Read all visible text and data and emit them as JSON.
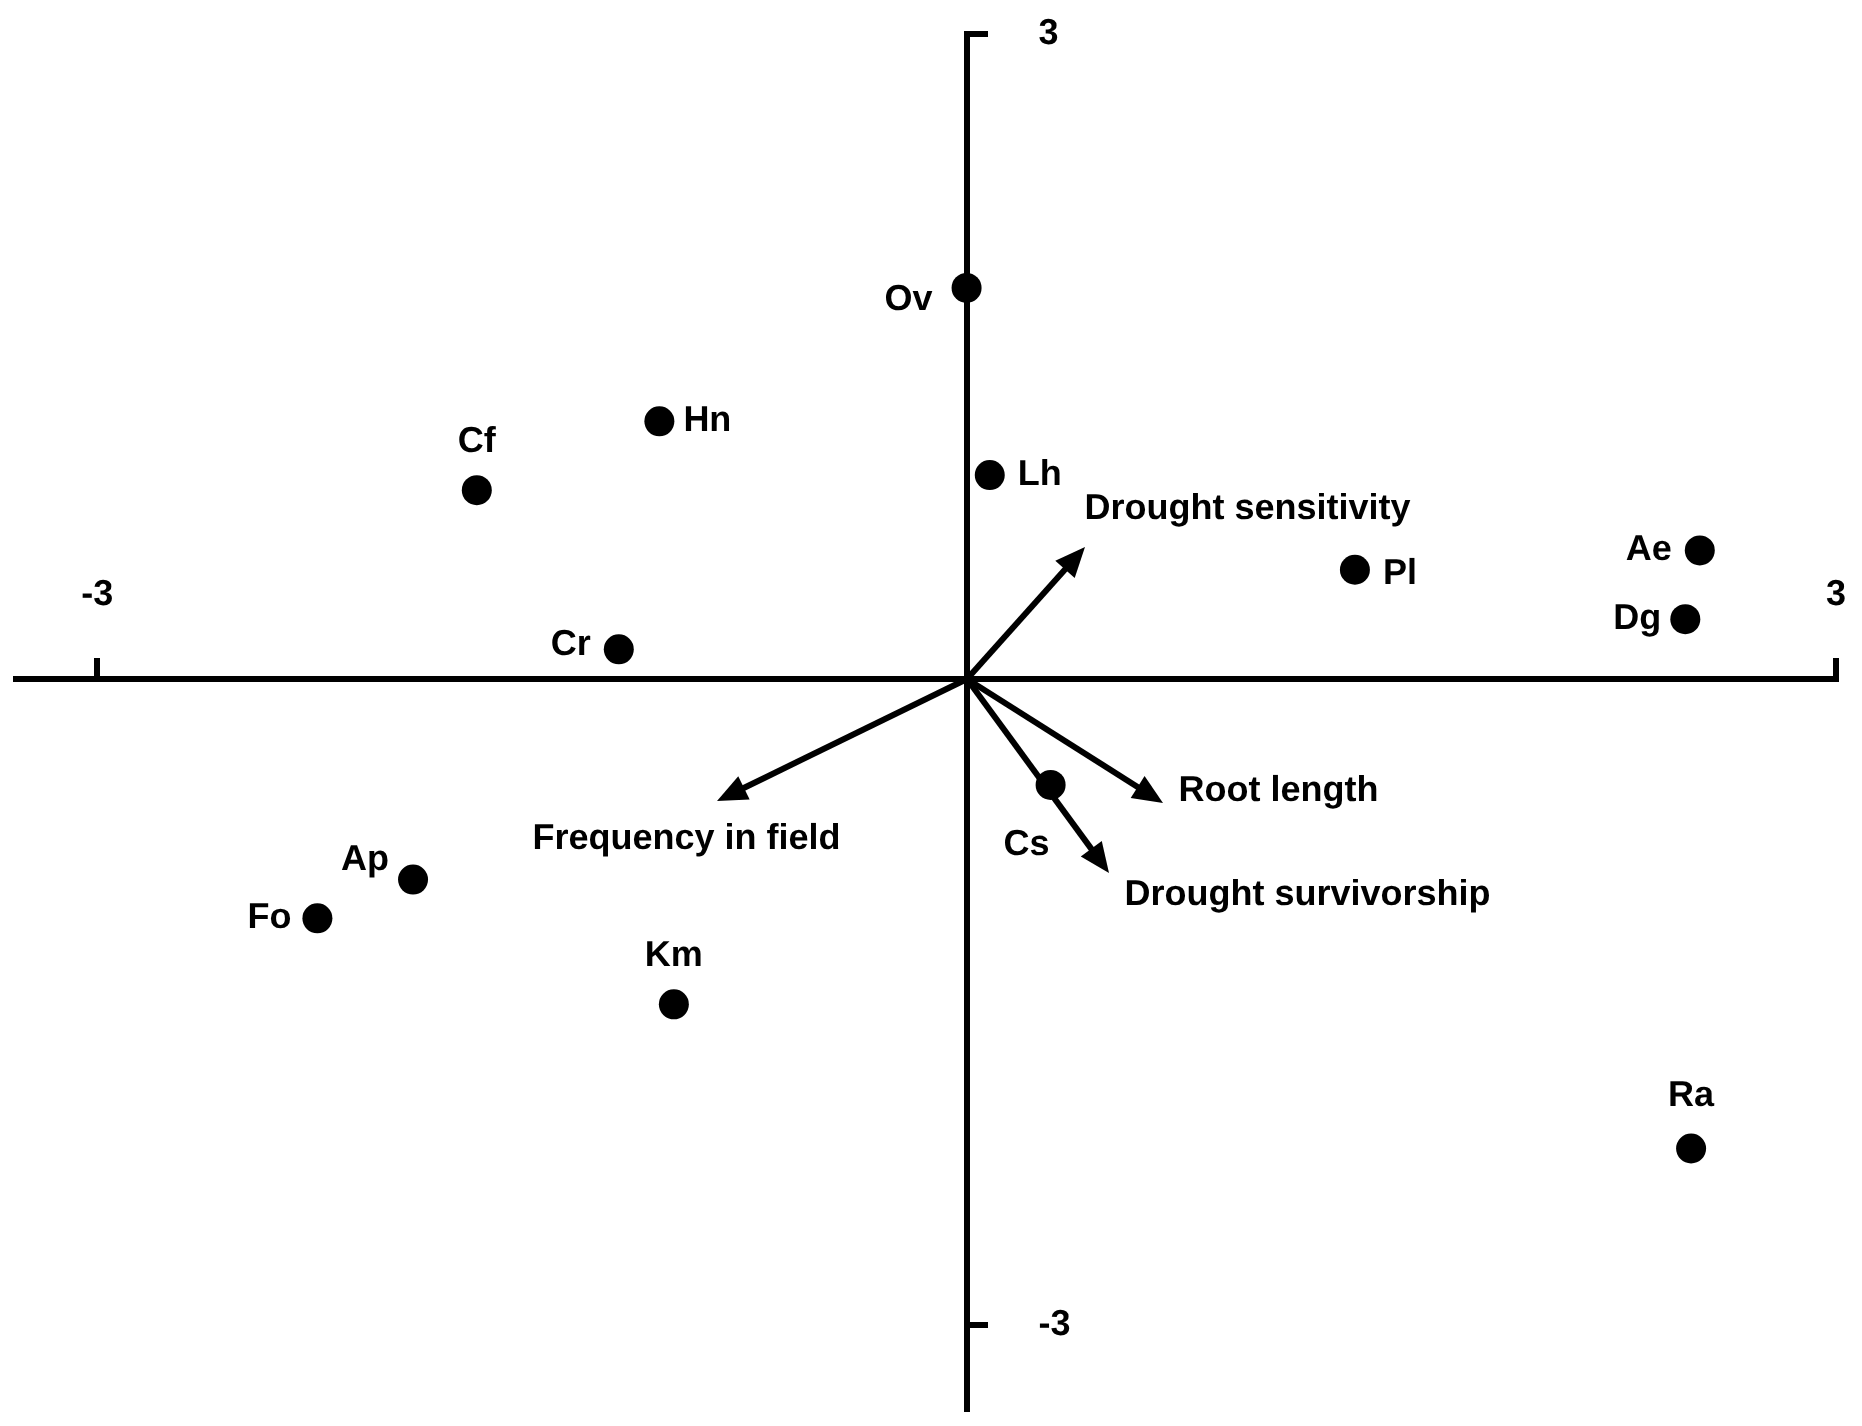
{
  "chart_data": {
    "type": "scatter",
    "series": [
      {
        "color": "#000000",
        "marker": "circle",
        "x": [
          0,
          -1.06,
          -1.69,
          0.08,
          2.53,
          1.34,
          2.48,
          -1.2,
          0.29,
          -1.91,
          -2.24,
          -1.01,
          2.5
        ],
        "values": [
          1.82,
          1.2,
          0.88,
          0.95,
          0.6,
          0.51,
          0.28,
          0.14,
          -0.49,
          -0.93,
          -1.11,
          -1.51,
          -2.18
        ]
      }
    ],
    "xlim": [
      -3.28,
      3
    ],
    "ylim": [
      -3.4,
      3
    ],
    "xticks": [
      -3,
      3
    ],
    "yticks": [
      -3,
      3
    ],
    "annotations": [
      {
        "text": "Ov",
        "x": 0,
        "y": 1.82
      },
      {
        "text": "Hn",
        "x": -1.06,
        "y": 1.2
      },
      {
        "text": "Cf",
        "x": -1.69,
        "y": 0.88
      },
      {
        "text": "Lh",
        "x": 0.08,
        "y": 0.95
      },
      {
        "text": "Ae",
        "x": 2.53,
        "y": 0.6
      },
      {
        "text": "Pl",
        "x": 1.34,
        "y": 0.51
      },
      {
        "text": "Dg",
        "x": 2.48,
        "y": 0.28
      },
      {
        "text": "Cr",
        "x": -1.2,
        "y": 0.14
      },
      {
        "text": "Cs",
        "x": 0.29,
        "y": -0.49
      },
      {
        "text": "Ap",
        "x": -1.91,
        "y": -0.93
      },
      {
        "text": "Fo",
        "x": -2.24,
        "y": -1.11
      },
      {
        "text": "Km",
        "x": -1.01,
        "y": -1.51
      },
      {
        "text": "Ra",
        "x": 2.5,
        "y": -2.18
      },
      "Drought sensitivity",
      "Root length",
      "Drought survivorship",
      "Frequency in field"
    ]
  }
}
